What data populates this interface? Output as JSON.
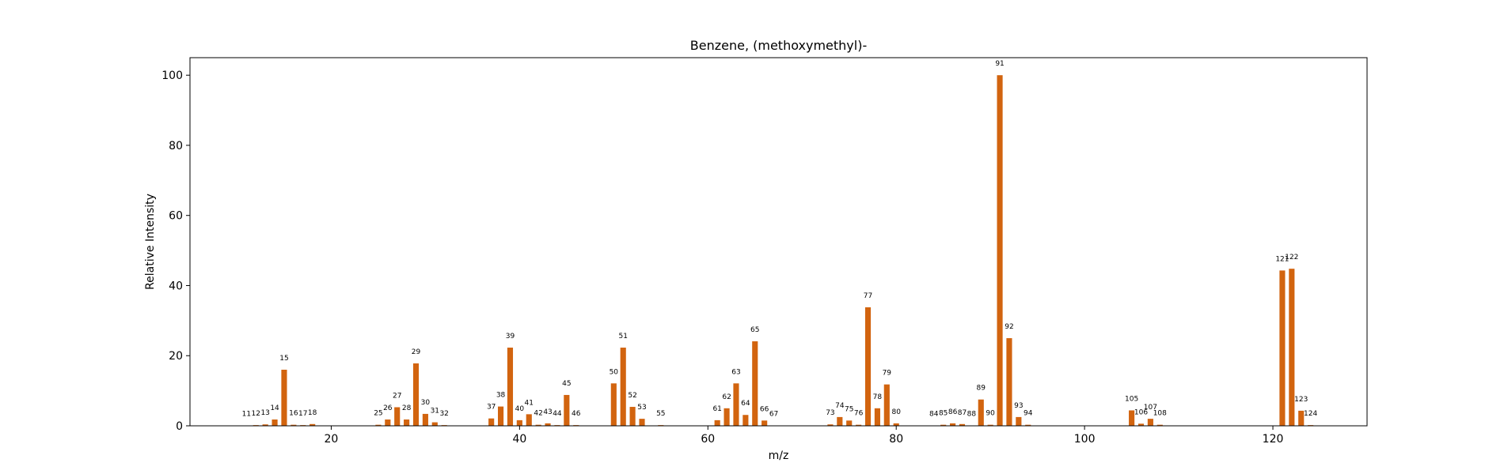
{
  "chart_data": {
    "type": "bar",
    "title": "Benzene, (methoxymethyl)-",
    "xlabel": "m/z",
    "ylabel": "Relative Intensity",
    "xlim": [
      5,
      130
    ],
    "ylim": [
      0,
      105
    ],
    "xticks": [
      20,
      40,
      60,
      80,
      100,
      120
    ],
    "yticks": [
      0,
      20,
      40,
      60,
      80,
      100
    ],
    "bar_color": "#d2640f",
    "grid": false,
    "x": [
      11,
      12,
      13,
      14,
      15,
      16,
      17,
      18,
      25,
      26,
      27,
      28,
      29,
      30,
      31,
      32,
      37,
      38,
      39,
      40,
      41,
      42,
      43,
      44,
      45,
      46,
      50,
      51,
      52,
      53,
      55,
      61,
      62,
      63,
      64,
      65,
      66,
      67,
      73,
      74,
      75,
      76,
      77,
      78,
      79,
      80,
      84,
      85,
      86,
      87,
      88,
      89,
      90,
      91,
      92,
      93,
      94,
      105,
      106,
      107,
      108,
      121,
      122,
      123,
      124
    ],
    "values": [
      0.1,
      0.2,
      0.4,
      1.8,
      16,
      0.3,
      0.2,
      0.5,
      0.3,
      1.8,
      5.3,
      1.8,
      17.8,
      3.4,
      1.0,
      0.2,
      2.1,
      5.5,
      22.3,
      1.6,
      3.3,
      0.3,
      0.7,
      0.2,
      8.8,
      0.2,
      12.1,
      22.3,
      5.4,
      2.0,
      0.2,
      1.6,
      5.0,
      12.1,
      3.1,
      24.1,
      1.5,
      0.1,
      0.4,
      2.5,
      1.5,
      0.3,
      33.8,
      5.0,
      11.8,
      0.7,
      0.1,
      0.3,
      0.7,
      0.5,
      0.1,
      7.5,
      0.3,
      100,
      25,
      2.5,
      0.3,
      4.4,
      0.6,
      2.0,
      0.3,
      44.3,
      44.8,
      4.3,
      0.2
    ]
  }
}
